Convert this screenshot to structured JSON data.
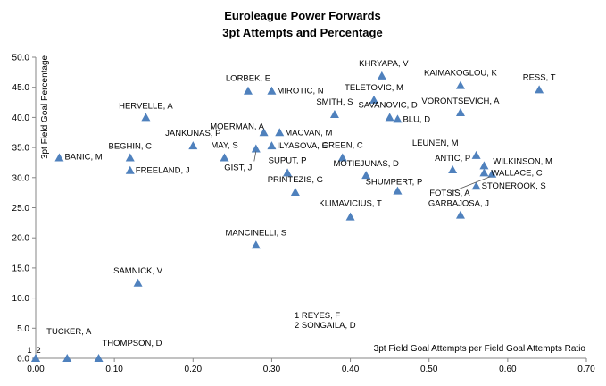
{
  "chart_data": {
    "type": "scatter",
    "title": "Euroleague Power Forwards",
    "subtitle": "3pt Attempts and Percentage",
    "xlabel": "3pt Field Goal Attempts per Field Goal Attempts Ratio",
    "ylabel": "3pt Field Goal Percentage",
    "xlim": [
      0,
      0.7
    ],
    "ylim": [
      0,
      50
    ],
    "x_ticks": [
      "0.00",
      "0.10",
      "0.20",
      "0.30",
      "0.40",
      "0.50",
      "0.60",
      "0.70"
    ],
    "y_ticks": [
      "0.0",
      "5.0",
      "10.0",
      "15.0",
      "20.0",
      "25.0",
      "30.0",
      "35.0",
      "40.0",
      "45.0",
      "50.0"
    ],
    "marker_color": "#4f81bd",
    "grid": false,
    "points": [
      {
        "label": "KHRYAPA, V",
        "x": 0.44,
        "y": 46.9
      },
      {
        "label": "KAIMAKOGLOU, K",
        "x": 0.54,
        "y": 45.3
      },
      {
        "label": "RESS, T",
        "x": 0.64,
        "y": 44.6
      },
      {
        "label": "LORBEK, E",
        "x": 0.27,
        "y": 44.4
      },
      {
        "label": "MIROTIC, N",
        "x": 0.3,
        "y": 44.4
      },
      {
        "label": "TELETOVIC, M",
        "x": 0.43,
        "y": 42.9
      },
      {
        "label": "VORONTSEVICH, A",
        "x": 0.54,
        "y": 40.8
      },
      {
        "label": "SMITH, S",
        "x": 0.38,
        "y": 40.5
      },
      {
        "label": "SAVANOVIC, D",
        "x": 0.45,
        "y": 40.0
      },
      {
        "label": "BLU, D",
        "x": 0.46,
        "y": 39.7
      },
      {
        "label": "HERVELLE, A",
        "x": 0.14,
        "y": 40.0
      },
      {
        "label": "MOERMAN, A",
        "x": 0.29,
        "y": 37.5
      },
      {
        "label": "MACVAN, M",
        "x": 0.31,
        "y": 37.5
      },
      {
        "label": "JANKUNAS, P",
        "x": 0.2,
        "y": 35.3
      },
      {
        "label": "ILYASOVA, E",
        "x": 0.3,
        "y": 35.3
      },
      {
        "label": "GIST, J",
        "x": 0.28,
        "y": 34.8
      },
      {
        "label": "MAY, S",
        "x": 0.24,
        "y": 33.3
      },
      {
        "label": "GREEN, C",
        "x": 0.39,
        "y": 33.3
      },
      {
        "label": "LEUNEN, M",
        "x": 0.56,
        "y": 33.7
      },
      {
        "label": "BANIC, M",
        "x": 0.03,
        "y": 33.3
      },
      {
        "label": "BEGHIN, C",
        "x": 0.12,
        "y": 33.3
      },
      {
        "label": "FREELAND, J",
        "x": 0.12,
        "y": 31.2
      },
      {
        "label": "WILKINSON, M",
        "x": 0.57,
        "y": 32.0
      },
      {
        "label": "ANTIC, P",
        "x": 0.53,
        "y": 31.3
      },
      {
        "label": "WALLACE, C",
        "x": 0.57,
        "y": 30.8
      },
      {
        "label": "FOTSIS, A",
        "x": 0.58,
        "y": 30.6
      },
      {
        "label": "SUPUT, P",
        "x": 0.32,
        "y": 30.8
      },
      {
        "label": "MOTIEJUNAS, D",
        "x": 0.42,
        "y": 30.4
      },
      {
        "label": "STONEROOK, S",
        "x": 0.56,
        "y": 28.6
      },
      {
        "label": "PRINTEZIS, G",
        "x": 0.33,
        "y": 27.6
      },
      {
        "label": "SHUMPERT, P",
        "x": 0.46,
        "y": 27.8
      },
      {
        "label": "GARBAJOSA, J",
        "x": 0.54,
        "y": 23.8
      },
      {
        "label": "KLIMAVICIUS, T",
        "x": 0.4,
        "y": 23.5
      },
      {
        "label": "MANCINELLI, S",
        "x": 0.28,
        "y": 18.8
      },
      {
        "label": "SAMNICK, V",
        "x": 0.13,
        "y": 12.5
      },
      {
        "label": "TUCKER, A",
        "x": 0.04,
        "y": 0.0
      },
      {
        "label": "THOMPSON, D",
        "x": 0.08,
        "y": 0.0
      },
      {
        "label": "1",
        "x": 0.0,
        "y": 0.0
      },
      {
        "label": "2",
        "x": 0.0,
        "y": 0.0
      }
    ],
    "notes": [
      "1 REYES, F",
      "2 SONGAILA, D"
    ]
  }
}
